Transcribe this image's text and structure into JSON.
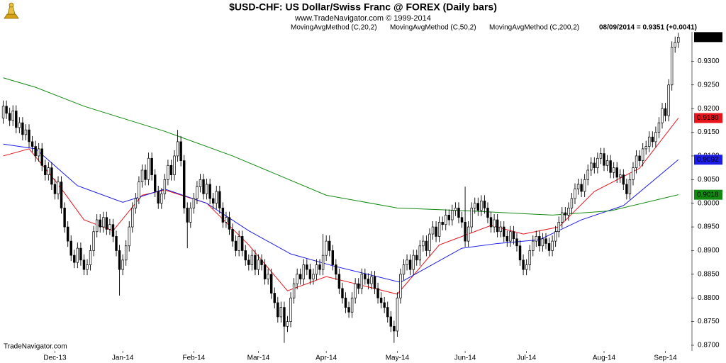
{
  "chart_data": {
    "type": "candlestick",
    "title": "$USD-CHF:  US Dollar/Swiss Franc @ FOREX  (Daily bars)",
    "subtitle": "www.TradeNavigator.com © 1999-2014",
    "info": "08/09/2014 = 0.9351 (+0.0041)",
    "watermark": "TradeNavigator.com",
    "up_color": "#ffffff",
    "down_color": "#000000",
    "ylim": [
      0.8688,
      0.9362
    ],
    "xlim": [
      -1,
      213
    ],
    "yticks": [
      {
        "value": 0.87,
        "label": "0.8700"
      },
      {
        "value": 0.875,
        "label": "0.8750"
      },
      {
        "value": 0.88,
        "label": "0.8800"
      },
      {
        "value": 0.885,
        "label": "0.8850"
      },
      {
        "value": 0.89,
        "label": "0.8900"
      },
      {
        "value": 0.895,
        "label": "0.8950"
      },
      {
        "value": 0.9,
        "label": "0.9000"
      },
      {
        "value": 0.905,
        "label": "0.9050"
      },
      {
        "value": 0.91,
        "label": "0.9100"
      },
      {
        "value": 0.915,
        "label": "0.9150"
      },
      {
        "value": 0.92,
        "label": "0.9200"
      },
      {
        "value": 0.925,
        "label": "0.9250"
      },
      {
        "value": 0.93,
        "label": "0.9300"
      }
    ],
    "xticks": [
      {
        "value": 16,
        "label": "Dec-13"
      },
      {
        "value": 37,
        "label": "Jan-14"
      },
      {
        "value": 59,
        "label": "Feb-14"
      },
      {
        "value": 79,
        "label": "Mar-14"
      },
      {
        "value": 100,
        "label": "Apr-14"
      },
      {
        "value": 122,
        "label": "May-14"
      },
      {
        "value": 143,
        "label": "Jun-14"
      },
      {
        "value": 162,
        "label": "Jul-14"
      },
      {
        "value": 186,
        "label": "Aug-14"
      },
      {
        "value": 205,
        "label": "Sep-14"
      }
    ],
    "open": [
      0.918,
      0.9205,
      0.919,
      0.9175,
      0.9195,
      0.916,
      0.917,
      0.9145,
      0.9155,
      0.913,
      0.912,
      0.91,
      0.9115,
      0.908,
      0.906,
      0.9075,
      0.904,
      0.902,
      0.9045,
      0.899,
      0.895,
      0.892,
      0.889,
      0.8875,
      0.8905,
      0.888,
      0.886,
      0.887,
      0.89,
      0.894,
      0.8965,
      0.895,
      0.897,
      0.8945,
      0.8955,
      0.893,
      0.89,
      0.886,
      0.888,
      0.891,
      0.895,
      0.899,
      0.901,
      0.9045,
      0.907,
      0.905,
      0.9095,
      0.906,
      0.9025,
      0.9,
      0.902,
      0.905,
      0.908,
      0.906,
      0.91,
      0.913,
      0.909,
      0.899,
      0.896,
      0.899,
      0.901,
      0.9035,
      0.905,
      0.902,
      0.904,
      0.901,
      0.9,
      0.9025,
      0.899,
      0.896,
      0.897,
      0.8945,
      0.892,
      0.89,
      0.893,
      0.89,
      0.888,
      0.887,
      0.889,
      0.886,
      0.888,
      0.887,
      0.884,
      0.885,
      0.881,
      0.879,
      0.876,
      0.878,
      0.874,
      0.875,
      0.88,
      0.883,
      0.885,
      0.884,
      0.887,
      0.886,
      0.884,
      0.885,
      0.887,
      0.886,
      0.889,
      0.892,
      0.89,
      0.887,
      0.885,
      0.882,
      0.88,
      0.878,
      0.877,
      0.88,
      0.883,
      0.882,
      0.885,
      0.884,
      0.883,
      0.8845,
      0.882,
      0.88,
      0.879,
      0.878,
      0.876,
      0.874,
      0.873,
      0.88,
      0.885,
      0.887,
      0.888,
      0.886,
      0.889,
      0.888,
      0.891,
      0.892,
      0.89,
      0.8935,
      0.895,
      0.893,
      0.896,
      0.8955,
      0.8975,
      0.8965,
      0.8985,
      0.899,
      0.897,
      0.896,
      0.892,
      0.895,
      0.899,
      0.9,
      0.8985,
      0.9005,
      0.899,
      0.897,
      0.895,
      0.8965,
      0.894,
      0.895,
      0.893,
      0.892,
      0.894,
      0.8925,
      0.891,
      0.888,
      0.886,
      0.887,
      0.89,
      0.892,
      0.893,
      0.891,
      0.8925,
      0.8915,
      0.89,
      0.892,
      0.894,
      0.896,
      0.898,
      0.8975,
      0.899,
      0.901,
      0.903,
      0.904,
      0.9025,
      0.905,
      0.907,
      0.9085,
      0.9075,
      0.9095,
      0.9105,
      0.908,
      0.909,
      0.9065,
      0.9075,
      0.9055,
      0.906,
      0.904,
      0.902,
      0.905,
      0.9075,
      0.91,
      0.909,
      0.9115,
      0.912,
      0.914,
      0.913,
      0.915,
      0.917,
      0.92,
      0.9185,
      0.925,
      0.933,
      0.934
    ],
    "high": [
      0.9217,
      0.9217,
      0.9202,
      0.9207,
      0.9207,
      0.9182,
      0.9182,
      0.9167,
      0.9167,
      0.9142,
      0.9132,
      0.9127,
      0.9127,
      0.9092,
      0.9087,
      0.9087,
      0.9052,
      0.9057,
      0.9057,
      0.9002,
      0.8962,
      0.8932,
      0.8902,
      0.8917,
      0.8917,
      0.8892,
      0.8882,
      0.8912,
      0.8952,
      0.8977,
      0.8977,
      0.8982,
      0.8982,
      0.8967,
      0.8967,
      0.8942,
      0.8912,
      0.8892,
      0.8922,
      0.8962,
      0.9002,
      0.9022,
      0.9057,
      0.9082,
      0.9082,
      0.9107,
      0.9107,
      0.9072,
      0.9037,
      0.9032,
      0.9062,
      0.9092,
      0.9092,
      0.9112,
      0.9155,
      0.9142,
      0.9102,
      0.9002,
      0.9002,
      0.9022,
      0.9047,
      0.9062,
      0.9062,
      0.9052,
      0.9052,
      0.9022,
      0.9037,
      0.9037,
      0.9002,
      0.8982,
      0.8982,
      0.8957,
      0.8932,
      0.8942,
      0.8942,
      0.8912,
      0.8892,
      0.8902,
      0.8902,
      0.8892,
      0.8892,
      0.8882,
      0.8862,
      0.8862,
      0.8822,
      0.8802,
      0.8792,
      0.8792,
      0.8762,
      0.8812,
      0.8842,
      0.8862,
      0.8862,
      0.8882,
      0.8882,
      0.8872,
      0.8862,
      0.8882,
      0.8882,
      0.8935,
      0.8932,
      0.8932,
      0.8912,
      0.8882,
      0.8862,
      0.8832,
      0.8812,
      0.8792,
      0.8812,
      0.8842,
      0.8842,
      0.8862,
      0.8862,
      0.8852,
      0.8857,
      0.8857,
      0.8832,
      0.8812,
      0.8802,
      0.8792,
      0.8772,
      0.8752,
      0.8812,
      0.8862,
      0.8882,
      0.8892,
      0.8892,
      0.8902,
      0.8902,
      0.8922,
      0.8932,
      0.8932,
      0.8947,
      0.8962,
      0.8962,
      0.8972,
      0.8972,
      0.8987,
      0.8987,
      0.8997,
      0.9002,
      0.9002,
      0.8982,
      0.9035,
      0.8962,
      0.9002,
      0.9012,
      0.9012,
      0.9017,
      0.9017,
      0.9002,
      0.8982,
      0.8977,
      0.8977,
      0.8962,
      0.8962,
      0.8942,
      0.8952,
      0.8952,
      0.8937,
      0.8922,
      0.8892,
      0.8882,
      0.8912,
      0.8932,
      0.8942,
      0.8942,
      0.8937,
      0.8937,
      0.8927,
      0.8932,
      0.8952,
      0.8972,
      0.8992,
      0.8992,
      0.9002,
      0.9022,
      0.9042,
      0.9052,
      0.9052,
      0.9062,
      0.9082,
      0.9097,
      0.9097,
      0.9107,
      0.9117,
      0.9117,
      0.9102,
      0.9102,
      0.9087,
      0.9087,
      0.9072,
      0.9072,
      0.9052,
      0.9062,
      0.9087,
      0.9112,
      0.9112,
      0.9127,
      0.9132,
      0.9152,
      0.9152,
      0.9162,
      0.9182,
      0.9212,
      0.9212,
      0.9262,
      0.9342,
      0.9352,
      0.936
    ],
    "low": [
      0.9168,
      0.9178,
      0.9163,
      0.9163,
      0.9148,
      0.9148,
      0.9133,
      0.9133,
      0.9118,
      0.9108,
      0.9088,
      0.9088,
      0.9068,
      0.9048,
      0.9048,
      0.9028,
      0.9008,
      0.9008,
      0.8978,
      0.8938,
      0.8908,
      0.8878,
      0.8863,
      0.8863,
      0.8868,
      0.8848,
      0.8848,
      0.8858,
      0.8888,
      0.8928,
      0.8938,
      0.8938,
      0.8933,
      0.8933,
      0.8918,
      0.8888,
      0.8805,
      0.8848,
      0.8868,
      0.8898,
      0.8938,
      0.8978,
      0.8998,
      0.9033,
      0.9038,
      0.9038,
      0.9048,
      0.9013,
      0.8988,
      0.8988,
      0.9008,
      0.9038,
      0.9048,
      0.9048,
      0.9088,
      0.9078,
      0.8978,
      0.8905,
      0.8948,
      0.8978,
      0.8998,
      0.9023,
      0.9008,
      0.9008,
      0.8998,
      0.8988,
      0.8988,
      0.8978,
      0.8948,
      0.8948,
      0.8933,
      0.8908,
      0.8888,
      0.8888,
      0.8888,
      0.8868,
      0.8858,
      0.8858,
      0.8848,
      0.8848,
      0.8858,
      0.8828,
      0.8828,
      0.8798,
      0.8778,
      0.8748,
      0.8748,
      0.8705,
      0.8728,
      0.8738,
      0.8788,
      0.8818,
      0.8828,
      0.8828,
      0.8848,
      0.8828,
      0.8828,
      0.8838,
      0.8848,
      0.8848,
      0.8878,
      0.8888,
      0.8858,
      0.8838,
      0.8808,
      0.8788,
      0.8768,
      0.8758,
      0.8758,
      0.8788,
      0.8808,
      0.8808,
      0.8828,
      0.8818,
      0.8818,
      0.8808,
      0.8788,
      0.8778,
      0.8768,
      0.8748,
      0.8728,
      0.8705,
      0.8718,
      0.8788,
      0.8838,
      0.8858,
      0.8848,
      0.8848,
      0.8868,
      0.8868,
      0.8898,
      0.8888,
      0.8888,
      0.8923,
      0.8918,
      0.8918,
      0.8943,
      0.8943,
      0.8953,
      0.8953,
      0.8973,
      0.8958,
      0.8948,
      0.8908,
      0.8908,
      0.8938,
      0.8978,
      0.8973,
      0.8973,
      0.8978,
      0.8958,
      0.8938,
      0.8938,
      0.8928,
      0.8928,
      0.8918,
      0.8908,
      0.8908,
      0.8913,
      0.8898,
      0.8868,
      0.8848,
      0.8848,
      0.8858,
      0.8888,
      0.8908,
      0.8898,
      0.8898,
      0.8903,
      0.8888,
      0.8888,
      0.8908,
      0.8928,
      0.8948,
      0.8963,
      0.8963,
      0.8978,
      0.8998,
      0.9018,
      0.9013,
      0.9013,
      0.9038,
      0.9058,
      0.9063,
      0.9063,
      0.9083,
      0.9068,
      0.9068,
      0.9053,
      0.9053,
      0.9043,
      0.9043,
      0.9028,
      0.9008,
      0.9008,
      0.9038,
      0.9063,
      0.9078,
      0.9078,
      0.9103,
      0.9108,
      0.9118,
      0.9118,
      0.9138,
      0.9158,
      0.9173,
      0.9173,
      0.9238,
      0.9318,
      0.9328
    ],
    "close": [
      0.9205,
      0.919,
      0.9175,
      0.9195,
      0.916,
      0.917,
      0.9145,
      0.9155,
      0.913,
      0.912,
      0.91,
      0.9115,
      0.908,
      0.906,
      0.9075,
      0.904,
      0.902,
      0.9045,
      0.899,
      0.895,
      0.892,
      0.889,
      0.8875,
      0.8905,
      0.888,
      0.886,
      0.887,
      0.89,
      0.894,
      0.8965,
      0.895,
      0.897,
      0.8945,
      0.8955,
      0.893,
      0.89,
      0.886,
      0.888,
      0.891,
      0.895,
      0.899,
      0.901,
      0.9045,
      0.907,
      0.905,
      0.9095,
      0.906,
      0.9025,
      0.9,
      0.902,
      0.905,
      0.908,
      0.906,
      0.91,
      0.913,
      0.909,
      0.899,
      0.896,
      0.899,
      0.901,
      0.9035,
      0.905,
      0.902,
      0.904,
      0.901,
      0.9,
      0.9025,
      0.899,
      0.896,
      0.897,
      0.8945,
      0.892,
      0.89,
      0.893,
      0.89,
      0.888,
      0.887,
      0.889,
      0.886,
      0.888,
      0.887,
      0.884,
      0.885,
      0.881,
      0.879,
      0.876,
      0.878,
      0.874,
      0.875,
      0.88,
      0.883,
      0.885,
      0.884,
      0.887,
      0.886,
      0.884,
      0.885,
      0.887,
      0.886,
      0.889,
      0.892,
      0.89,
      0.887,
      0.885,
      0.882,
      0.88,
      0.878,
      0.877,
      0.88,
      0.883,
      0.882,
      0.885,
      0.884,
      0.883,
      0.8845,
      0.882,
      0.88,
      0.879,
      0.878,
      0.876,
      0.874,
      0.873,
      0.88,
      0.885,
      0.887,
      0.888,
      0.886,
      0.889,
      0.888,
      0.891,
      0.892,
      0.89,
      0.8935,
      0.895,
      0.893,
      0.896,
      0.8955,
      0.8975,
      0.8965,
      0.8985,
      0.899,
      0.897,
      0.896,
      0.892,
      0.895,
      0.899,
      0.9,
      0.8985,
      0.9005,
      0.899,
      0.897,
      0.895,
      0.8965,
      0.894,
      0.895,
      0.893,
      0.892,
      0.894,
      0.8925,
      0.891,
      0.888,
      0.886,
      0.887,
      0.89,
      0.892,
      0.893,
      0.891,
      0.8925,
      0.8915,
      0.89,
      0.892,
      0.894,
      0.896,
      0.898,
      0.8975,
      0.899,
      0.901,
      0.903,
      0.904,
      0.9025,
      0.905,
      0.907,
      0.9085,
      0.9075,
      0.9095,
      0.9105,
      0.908,
      0.909,
      0.9065,
      0.9075,
      0.9055,
      0.906,
      0.904,
      0.902,
      0.905,
      0.9075,
      0.91,
      0.909,
      0.9115,
      0.912,
      0.914,
      0.913,
      0.915,
      0.917,
      0.92,
      0.9185,
      0.925,
      0.933,
      0.934,
      0.9351
    ],
    "series": [
      {
        "name": "MovingAvgMethod (C,20,2)",
        "color": "#e8141c",
        "x": [
          0,
          8,
          17,
          25,
          34,
          43,
          50,
          63,
          76,
          88,
          100,
          109,
          122,
          135,
          151,
          161,
          172,
          183,
          197,
          209
        ],
        "values": [
          0.91,
          0.9115,
          0.904,
          0.8965,
          0.8942,
          0.9017,
          0.9028,
          0.9,
          0.8912,
          0.8815,
          0.8845,
          0.883,
          0.8808,
          0.8912,
          0.8953,
          0.8935,
          0.895,
          0.9025,
          0.9074,
          0.918
        ],
        "value_labels": [
          null,
          null,
          null,
          null,
          null,
          null,
          null,
          null,
          null,
          null,
          null,
          null,
          null,
          null,
          null,
          null,
          null,
          null,
          null,
          "0.9180"
        ]
      },
      {
        "name": "MovingAvgMethod (C,50,2)",
        "color": "#1c1ce6",
        "x": [
          0,
          10,
          23,
          37,
          50,
          63,
          76,
          89,
          102,
          123,
          142,
          153,
          166,
          179,
          192,
          209
        ],
        "values": [
          0.9125,
          0.9115,
          0.9037,
          0.9002,
          0.903,
          0.9,
          0.8942,
          0.8893,
          0.8868,
          0.8833,
          0.8905,
          0.8915,
          0.8923,
          0.8965,
          0.8995,
          0.9092
        ]
      },
      {
        "name": "MovingAvgMethod (C,200,2)",
        "color": "#128a12",
        "x": [
          0,
          10,
          25,
          50,
          71,
          100,
          122,
          144,
          170,
          188,
          209
        ],
        "values": [
          0.9265,
          0.9245,
          0.9205,
          0.9152,
          0.91,
          0.9017,
          0.899,
          0.8984,
          0.8975,
          0.8984,
          0.9018
        ]
      }
    ]
  }
}
